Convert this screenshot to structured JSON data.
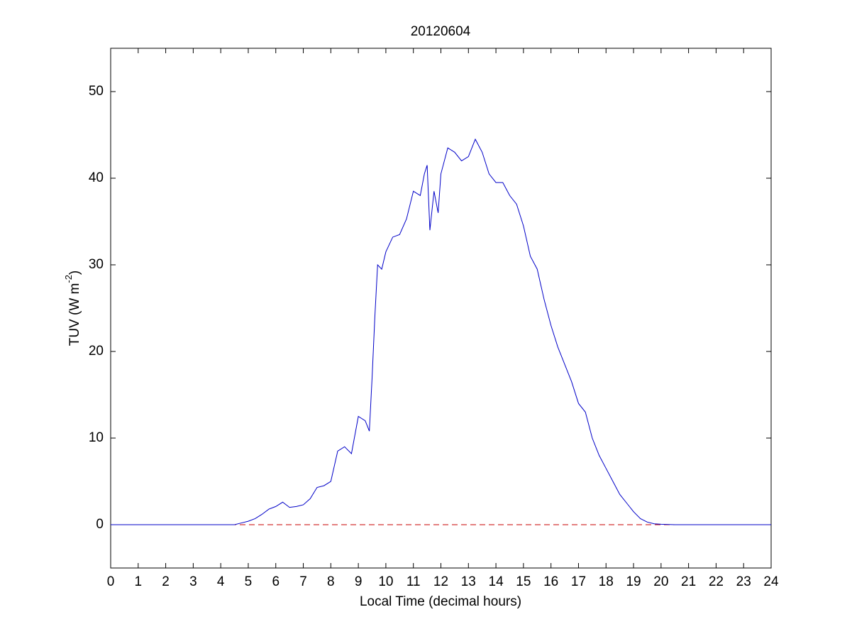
{
  "chart_data": {
    "type": "line",
    "title": "20120604",
    "xlabel": "Local Time (decimal hours)",
    "ylabel_parts": [
      "TUV (W m",
      "-2",
      ")"
    ],
    "x": [
      0,
      1,
      2,
      3,
      4,
      4.5,
      4.75,
      5,
      5.25,
      5.5,
      5.75,
      6,
      6.25,
      6.5,
      6.75,
      7,
      7.25,
      7.5,
      7.75,
      8,
      8.25,
      8.5,
      8.75,
      9,
      9.25,
      9.4,
      9.5,
      9.6,
      9.7,
      9.85,
      10,
      10.25,
      10.5,
      10.75,
      11,
      11.25,
      11.4,
      11.5,
      11.6,
      11.75,
      11.9,
      12,
      12.25,
      12.5,
      12.75,
      13,
      13.25,
      13.5,
      13.75,
      14,
      14.25,
      14.5,
      14.75,
      15,
      15.25,
      15.5,
      15.75,
      16,
      16.25,
      16.5,
      16.75,
      17,
      17.25,
      17.5,
      17.75,
      18,
      18.25,
      18.5,
      18.75,
      19,
      19.25,
      19.5,
      19.75,
      20,
      20.5,
      21,
      22,
      23,
      24
    ],
    "series": [
      {
        "color": "#0000c8",
        "values": [
          0,
          0,
          0,
          0,
          0,
          0,
          0.2,
          0.4,
          0.7,
          1.2,
          1.8,
          2.1,
          2.6,
          2.0,
          2.1,
          2.3,
          3.0,
          4.3,
          4.5,
          5.0,
          8.5,
          9.0,
          8.2,
          12.5,
          12.0,
          10.8,
          17,
          24,
          30,
          29.5,
          31.5,
          33.2,
          33.5,
          35.3,
          38.5,
          38,
          40.5,
          41.5,
          34.0,
          38.5,
          36.0,
          40.5,
          43.5,
          43,
          42,
          42.5,
          44.5,
          43,
          40.5,
          39.5,
          39.5,
          38,
          37,
          34.5,
          31,
          29.5,
          26,
          23,
          20.5,
          18.5,
          16.5,
          14,
          13,
          10,
          8,
          6.5,
          5,
          3.5,
          2.5,
          1.5,
          0.7,
          0.3,
          0.1,
          0.05,
          0,
          0,
          0,
          0,
          0
        ]
      }
    ],
    "reference_line": {
      "value": 0,
      "color": "#c80000",
      "dashed": true
    },
    "xlim": [
      0,
      24
    ],
    "xticks": [
      0,
      1,
      2,
      3,
      4,
      5,
      6,
      7,
      8,
      9,
      10,
      11,
      12,
      13,
      14,
      15,
      16,
      17,
      18,
      19,
      20,
      21,
      22,
      23,
      24
    ],
    "ylim": [
      -5,
      55
    ],
    "yticks": [
      0,
      10,
      20,
      30,
      40,
      50
    ],
    "grid": false
  }
}
